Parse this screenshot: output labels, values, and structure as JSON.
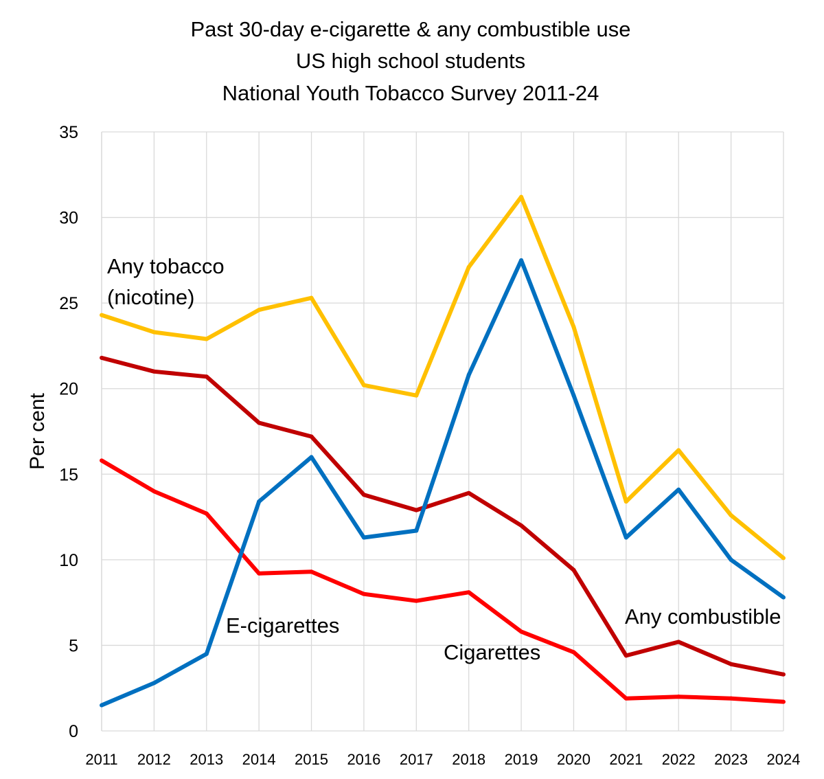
{
  "chart_data": {
    "type": "line",
    "title": [
      "Past 30-day e-cigarette & any combustible use",
      "US high school students",
      "National Youth Tobacco Survey 2011-24"
    ],
    "ylabel": "Per cent",
    "xlabel": "",
    "ylim": [
      0,
      35
    ],
    "y_ticks": [
      "0",
      "5",
      "10",
      "15",
      "20",
      "25",
      "30",
      "35"
    ],
    "y_tick_values": [
      0,
      5,
      10,
      15,
      20,
      25,
      30,
      35
    ],
    "categories": [
      "2011",
      "2012",
      "2013",
      "2014",
      "2015",
      "2016",
      "2017",
      "2018",
      "2019",
      "2020",
      "2021",
      "2022",
      "2023",
      "2024"
    ],
    "grid": "horizontal",
    "legend": "none (series labelled directly on the plot)",
    "series": [
      {
        "name": "Any tobacco (nicotine)",
        "label_lines": [
          "Any tobacco",
          "(nicotine)"
        ],
        "color": "#ffc000",
        "values": [
          24.3,
          23.3,
          22.9,
          24.6,
          25.3,
          20.2,
          19.6,
          27.1,
          31.2,
          23.6,
          13.4,
          16.4,
          12.6,
          10.1
        ]
      },
      {
        "name": "Any combustible",
        "label_lines": [
          "Any combustible"
        ],
        "color": "#c00000",
        "values": [
          21.8,
          21.0,
          20.7,
          18.0,
          17.2,
          13.8,
          12.9,
          13.9,
          12.0,
          9.4,
          4.4,
          5.2,
          3.9,
          3.3
        ]
      },
      {
        "name": "Cigarettes",
        "label_lines": [
          "Cigarettes"
        ],
        "color": "#ff0000",
        "values": [
          15.8,
          14.0,
          12.7,
          9.2,
          9.3,
          8.0,
          7.6,
          8.1,
          5.8,
          4.6,
          1.9,
          2.0,
          1.9,
          1.7
        ]
      },
      {
        "name": "E-cigarettes",
        "label_lines": [
          "E-cigarettes"
        ],
        "color": "#0070c0",
        "values": [
          1.5,
          2.8,
          4.5,
          13.4,
          16.0,
          11.3,
          11.7,
          20.8,
          27.5,
          19.6,
          11.3,
          14.1,
          10.0,
          7.8
        ]
      }
    ]
  }
}
